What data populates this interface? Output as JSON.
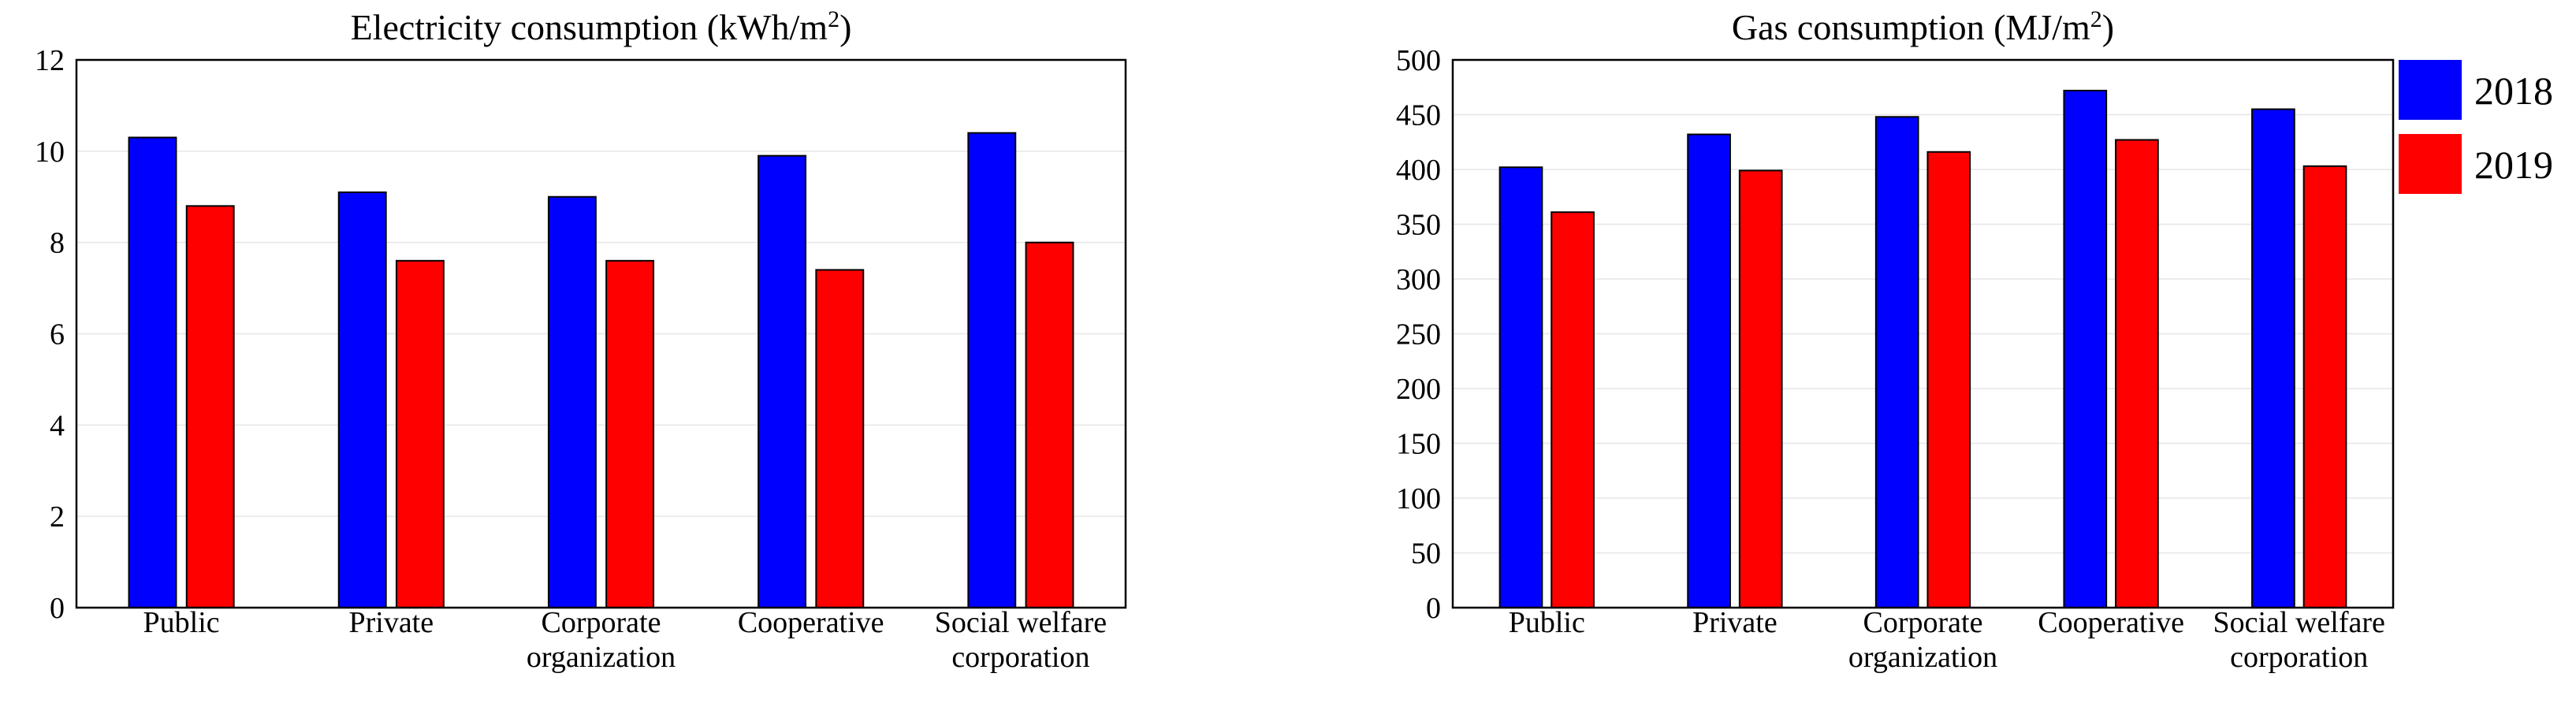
{
  "chart_data": [
    {
      "type": "bar",
      "title": "Electricity consumption (kWh/m²)",
      "title_main": "Electricity consumption (kWh/m",
      "title_sup": "2",
      "title_close": ")",
      "categories": [
        [
          "Public"
        ],
        [
          "Private"
        ],
        [
          "Corporate",
          "organization"
        ],
        [
          "Cooperative"
        ],
        [
          "Social welfare",
          "corporation"
        ]
      ],
      "series": [
        {
          "name": "2018",
          "color": "#0000ff",
          "values": [
            10.3,
            9.1,
            9.0,
            9.9,
            10.4
          ]
        },
        {
          "name": "2019",
          "color": "#ff0000",
          "values": [
            8.8,
            7.6,
            7.6,
            7.4,
            8.0
          ]
        }
      ],
      "ylim": [
        0,
        12
      ],
      "yticks": [
        0,
        2,
        4,
        6,
        8,
        10,
        12
      ],
      "grid": true,
      "xlabel": "",
      "ylabel": ""
    },
    {
      "type": "bar",
      "title": "Gas consumption (MJ/m²)",
      "title_main": "Gas consumption (MJ/m",
      "title_sup": "2",
      "title_close": ")",
      "categories": [
        [
          "Public"
        ],
        [
          "Private"
        ],
        [
          "Corporate",
          "organization"
        ],
        [
          "Cooperative"
        ],
        [
          "Social welfare",
          "corporation"
        ]
      ],
      "series": [
        {
          "name": "2018",
          "color": "#0000ff",
          "values": [
            402,
            432,
            448,
            472,
            455
          ]
        },
        {
          "name": "2019",
          "color": "#ff0000",
          "values": [
            361,
            399,
            416,
            427,
            403
          ]
        }
      ],
      "ylim": [
        0,
        500
      ],
      "yticks": [
        0,
        50,
        100,
        150,
        200,
        250,
        300,
        350,
        400,
        450,
        500
      ],
      "grid": true,
      "xlabel": "",
      "ylabel": "",
      "legend": {
        "position": "right"
      }
    }
  ]
}
